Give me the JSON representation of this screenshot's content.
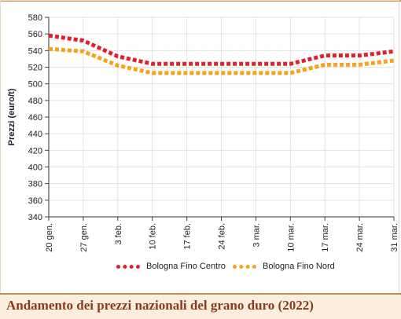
{
  "chart_data": {
    "type": "line",
    "title": "Andamento dei prezzi nazionali del grano duro (2022)",
    "ylabel": "Prezzi (euro/t)",
    "xlabel": "",
    "ylim": [
      340,
      580
    ],
    "yticks": [
      340,
      360,
      380,
      400,
      420,
      440,
      460,
      480,
      500,
      520,
      540,
      560,
      580
    ],
    "categories": [
      "20 gen.",
      "27 gen.",
      "3 feb.",
      "10 feb.",
      "17 feb.",
      "24 feb.",
      "3 mar.",
      "10 mar.",
      "17 mar.",
      "24 mar.",
      "31 mar."
    ],
    "series": [
      {
        "name": "Bologna Fino Centro",
        "color": "#e0202e",
        "values": [
          558,
          552,
          533,
          524,
          524,
          524,
          524,
          524,
          534,
          534,
          539
        ]
      },
      {
        "name": "Bologna Fino Nord",
        "color": "#f7a21b",
        "values": [
          542,
          539,
          522,
          513,
          513,
          513,
          513,
          513,
          523,
          523,
          528
        ]
      }
    ],
    "grid": true,
    "legend": "bottom"
  },
  "footer": {
    "title": "Andamento dei prezzi nazionali del grano duro (2022)"
  }
}
